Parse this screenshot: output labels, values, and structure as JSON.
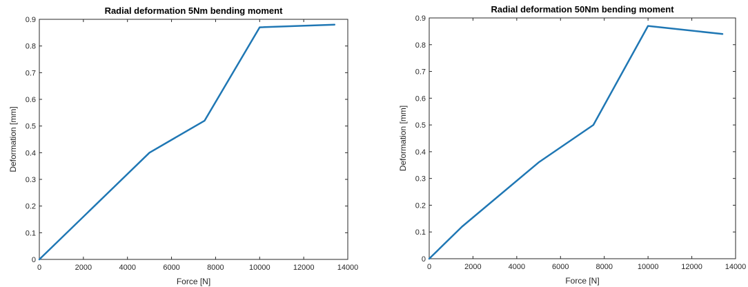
{
  "chart_data": [
    {
      "type": "line",
      "title": "Radial deformation 5Nm bending moment",
      "xlabel": "Force [N]",
      "ylabel": "Deformation [mm]",
      "xlim": [
        0,
        14000
      ],
      "ylim": [
        0,
        0.9
      ],
      "xticks": [
        0,
        2000,
        4000,
        6000,
        8000,
        10000,
        12000,
        14000
      ],
      "yticks": [
        0,
        0.1,
        0.2,
        0.3,
        0.4,
        0.5,
        0.6,
        0.7,
        0.8,
        0.9
      ],
      "xtick_labels": [
        "0",
        "2000",
        "4000",
        "6000",
        "8000",
        "10000",
        "12000",
        "14000"
      ],
      "ytick_labels": [
        "0",
        "0.1",
        "0.2",
        "0.3",
        "0.4",
        "0.5",
        "0.6",
        "0.7",
        "0.8",
        "0.9"
      ],
      "grid": false,
      "series": [
        {
          "x": [
            0,
            5000,
            7500,
            10000,
            13400
          ],
          "y": [
            0,
            0.4,
            0.52,
            0.87,
            0.88
          ]
        }
      ],
      "colors": {
        "line": "#1f77b4"
      }
    },
    {
      "type": "line",
      "title": "Radial deformation 50Nm bending moment",
      "xlabel": "Force [N]",
      "ylabel": "Deformation [mm]",
      "xlim": [
        0,
        14000
      ],
      "ylim": [
        0,
        0.9
      ],
      "xticks": [
        0,
        2000,
        4000,
        6000,
        8000,
        10000,
        12000,
        14000
      ],
      "yticks": [
        0,
        0.1,
        0.2,
        0.3,
        0.4,
        0.5,
        0.6,
        0.7,
        0.8,
        0.9
      ],
      "xtick_labels": [
        "0",
        "2000",
        "4000",
        "6000",
        "8000",
        "10000",
        "12000",
        "14000"
      ],
      "ytick_labels": [
        "0",
        "0.1",
        "0.2",
        "0.3",
        "0.4",
        "0.5",
        "0.6",
        "0.7",
        "0.8",
        "0.9"
      ],
      "grid": false,
      "series": [
        {
          "x": [
            0,
            1500,
            5000,
            7500,
            10000,
            13400
          ],
          "y": [
            0,
            0.12,
            0.36,
            0.5,
            0.87,
            0.84
          ]
        }
      ],
      "colors": {
        "line": "#1f77b4"
      }
    }
  ]
}
